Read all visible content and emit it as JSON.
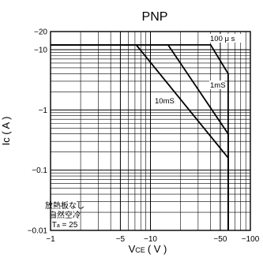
{
  "chart_data": {
    "type": "line",
    "title": "PNP",
    "xlabel_main": "V",
    "xlabel_sub": "CE",
    "xlabel_unit": "( V )",
    "ylabel": "Ic ( A )",
    "x_scale": "log",
    "y_scale": "log",
    "xlim": [
      1,
      100
    ],
    "ylim": [
      0.01,
      20
    ],
    "grid": true,
    "x_ticks": [
      {
        "value": 1,
        "label": "−1"
      },
      {
        "value": 5,
        "label": "−5"
      },
      {
        "value": 10,
        "label": "−10"
      },
      {
        "value": 50,
        "label": "−50"
      },
      {
        "value": 100,
        "label": "−100"
      }
    ],
    "y_ticks": [
      {
        "value": 20,
        "label": "−20"
      },
      {
        "value": 10,
        "label": "−10"
      },
      {
        "value": 1,
        "label": "−1"
      },
      {
        "value": 0.1,
        "label": "−0.1"
      },
      {
        "value": 0.01,
        "label": "−0.01"
      }
    ],
    "series": [
      {
        "name": "100 μ s",
        "points": [
          [
            1,
            12
          ],
          [
            40,
            12
          ],
          [
            60,
            4
          ],
          [
            60,
            0.01
          ]
        ]
      },
      {
        "name": "1mS",
        "points": [
          [
            1,
            12
          ],
          [
            15,
            12
          ],
          [
            60,
            0.4
          ],
          [
            60,
            0.01
          ]
        ]
      },
      {
        "name": "10mS",
        "points": [
          [
            1,
            12
          ],
          [
            7.2,
            12
          ],
          [
            60,
            0.16
          ],
          [
            60,
            0.01
          ]
        ]
      }
    ],
    "annotation": {
      "line1": "放熱板なし",
      "line2": "自然空冷",
      "line3_main": "T",
      "line3_sub": "a",
      "line3_rest": " = 25"
    }
  }
}
